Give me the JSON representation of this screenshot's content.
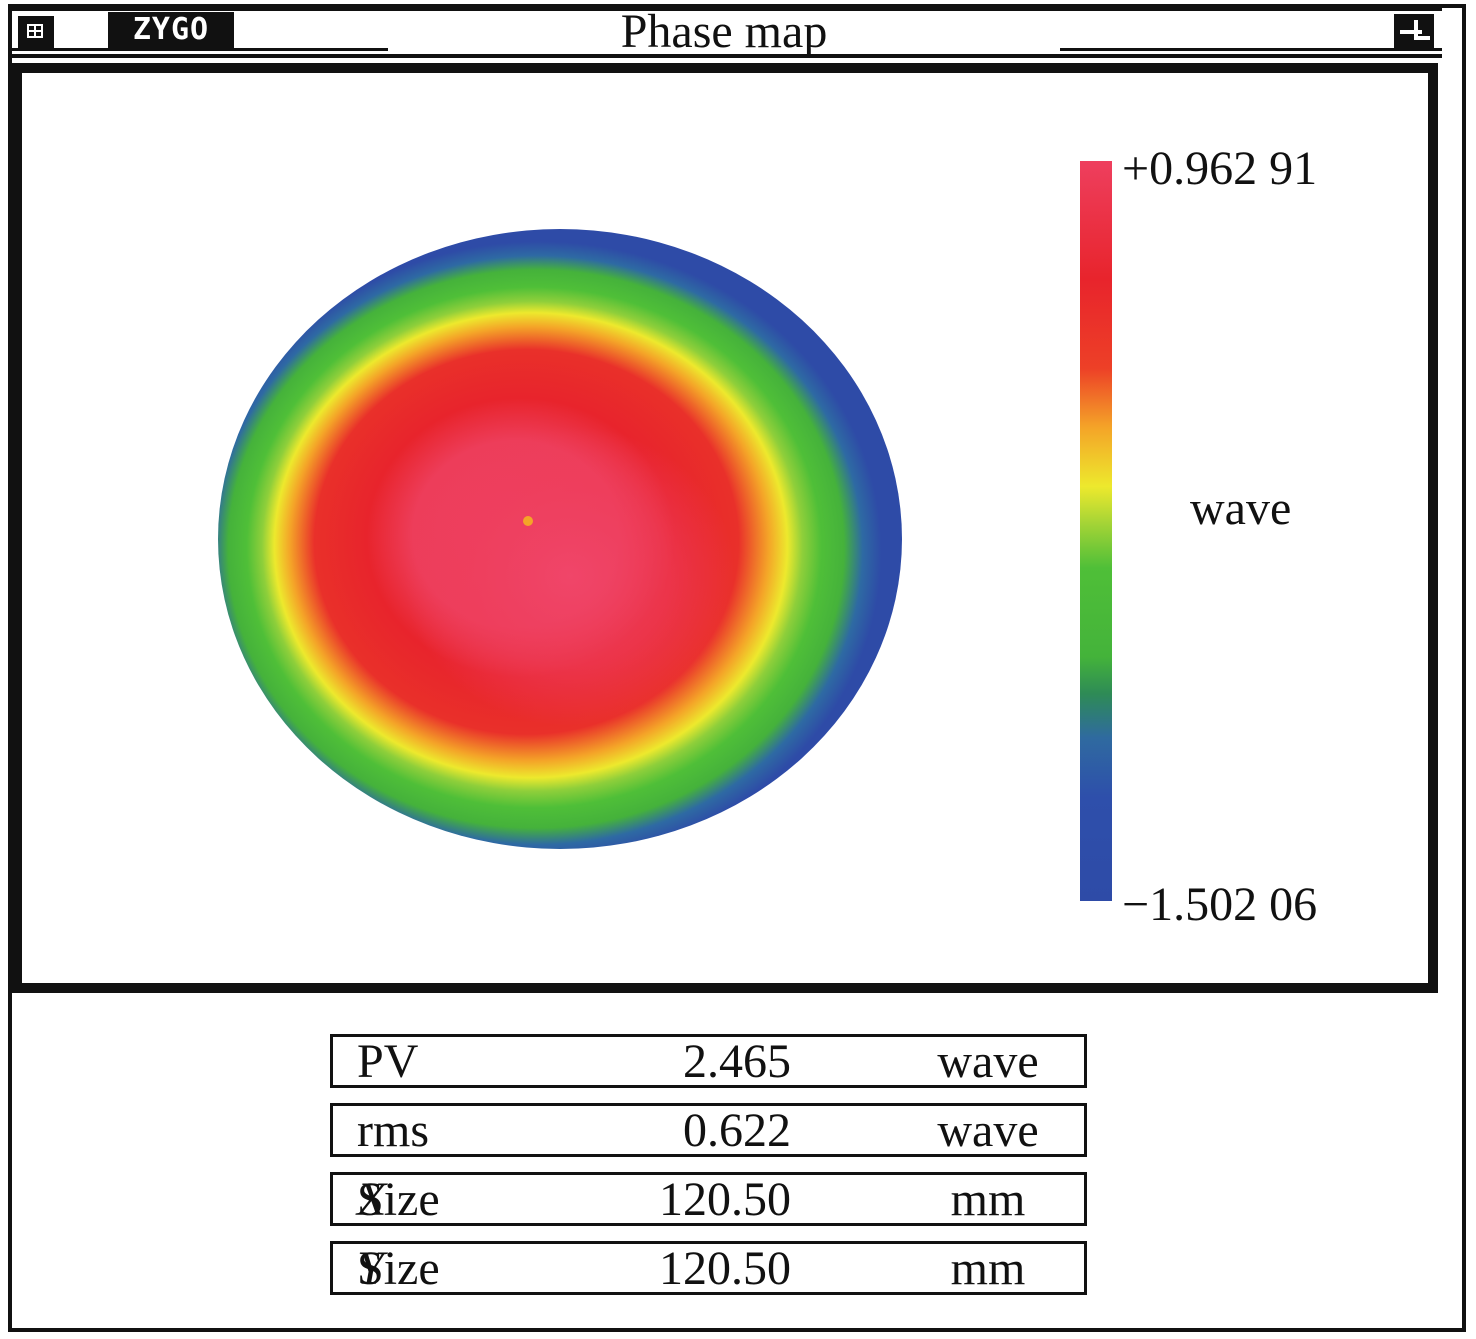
{
  "window": {
    "title": "Phase map",
    "logo_text": "ZYGO",
    "system_menu_icon": "system-menu-icon",
    "resize_icon": "resize-icon"
  },
  "colorbar": {
    "max_label": "+0.962 91",
    "min_label": "−1.502 06",
    "unit": "wave",
    "colors": [
      "#ee3f5e",
      "#e8242c",
      "#f4a428",
      "#ede92d",
      "#4fbf38",
      "#2e4ba7"
    ]
  },
  "stats": [
    {
      "name": "PV",
      "name_italic": "",
      "value": "2.465",
      "unit": "wave"
    },
    {
      "name": "rms",
      "name_italic": "",
      "value": "0.622",
      "unit": "wave"
    },
    {
      "name": "Size ",
      "name_italic": "X",
      "value": "120.50",
      "unit": "mm"
    },
    {
      "name": "Size ",
      "name_italic": "Y",
      "value": "120.50",
      "unit": "mm"
    }
  ]
}
